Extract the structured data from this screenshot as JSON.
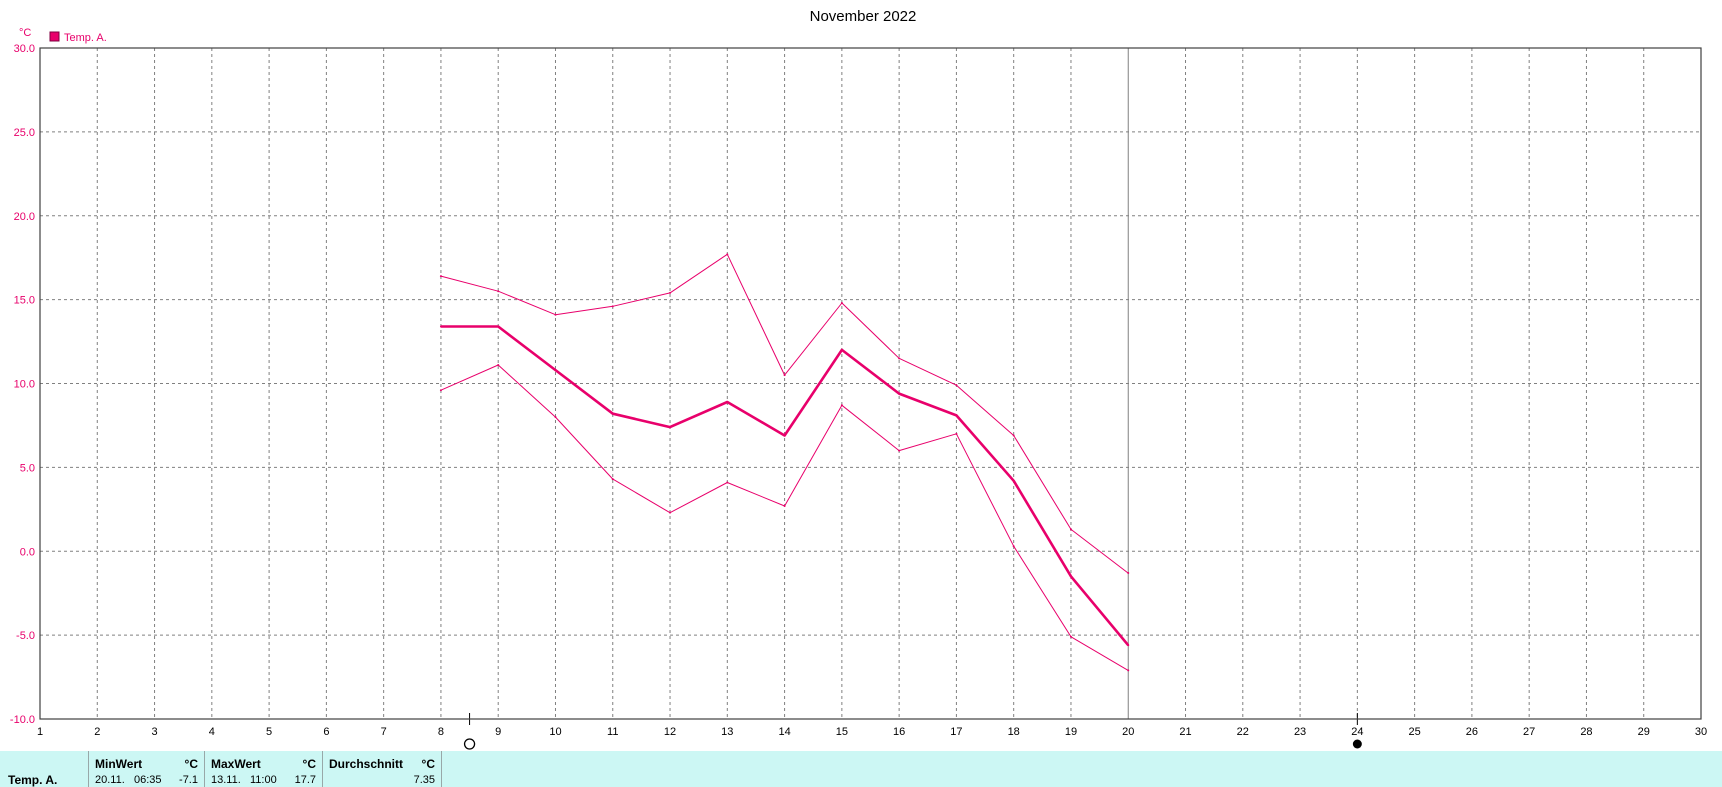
{
  "colors": {
    "series": "#e8006b",
    "axis_text": "#e8006b",
    "grid": "#808080",
    "footer_bg": "#ccf7f4"
  },
  "chart_data": {
    "type": "line",
    "title": "November 2022",
    "ylabel": "°C",
    "ylim": [
      -10,
      30
    ],
    "xlim": [
      1,
      30
    ],
    "y_ticks": [
      "30.0",
      "25.0",
      "20.0",
      "15.0",
      "10.0",
      "5.0",
      "0.0",
      "-5.0",
      "-10.0"
    ],
    "x_ticks": [
      "1",
      "2",
      "3",
      "4",
      "5",
      "6",
      "7",
      "8",
      "9",
      "10",
      "11",
      "12",
      "13",
      "14",
      "15",
      "16",
      "17",
      "18",
      "19",
      "20",
      "21",
      "22",
      "23",
      "24",
      "25",
      "26",
      "27",
      "28",
      "29",
      "30"
    ],
    "legend": {
      "label": "Temp. A.",
      "position": "top-left"
    },
    "x": [
      8,
      9,
      10,
      11,
      12,
      13,
      14,
      15,
      16,
      17,
      18,
      19,
      20
    ],
    "series": [
      {
        "name": "Temp. A.",
        "role": "max",
        "values": [
          16.4,
          15.5,
          14.1,
          14.6,
          15.4,
          17.7,
          10.5,
          14.8,
          11.5,
          9.9,
          6.9,
          1.3,
          -1.3
        ]
      },
      {
        "name": "Temp. A.",
        "role": "mean",
        "values": [
          13.4,
          13.4,
          10.8,
          8.2,
          7.4,
          8.9,
          6.9,
          12.0,
          9.4,
          8.1,
          4.2,
          -1.5,
          -5.6
        ]
      },
      {
        "name": "Temp. A.",
        "role": "min",
        "values": [
          9.6,
          11.1,
          8.0,
          4.3,
          2.3,
          4.1,
          2.7,
          8.7,
          6.0,
          7.0,
          0.3,
          -5.1,
          -7.1
        ]
      }
    ],
    "current_day": 20,
    "markers": [
      {
        "day": 8.5,
        "symbol": "open-circle",
        "label": "full moon"
      },
      {
        "day": 24,
        "symbol": "filled-circle",
        "label": "new moon"
      }
    ]
  },
  "footer": {
    "row_label": "Temp. A.",
    "min": {
      "title": "MinWert",
      "unit": "°C",
      "date": "20.11.",
      "time": "06:35",
      "value": "-7.1"
    },
    "max": {
      "title": "MaxWert",
      "unit": "°C",
      "date": "13.11.",
      "time": "11:00",
      "value": "17.7"
    },
    "avg": {
      "title": "Durchschnitt",
      "unit": "°C",
      "value": "7.35"
    }
  }
}
